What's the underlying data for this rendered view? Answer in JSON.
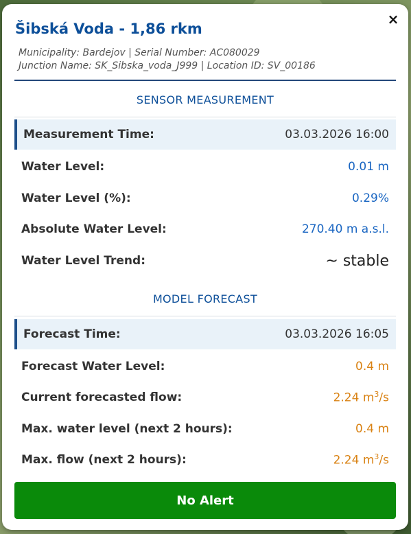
{
  "popup": {
    "title": "Šibská Voda - 1,86 rkm",
    "meta_line1": "Municipality: Bardejov | Serial Number: AC080029",
    "meta_line2": "Junction Name: SK_Sibska_voda_J999 | Location ID: SV_00186",
    "close_icon": "×"
  },
  "sensor": {
    "heading": "SENSOR MEASUREMENT",
    "rows": [
      {
        "label": "Measurement Time:",
        "value": "03.03.2026 16:00"
      },
      {
        "label": "Water Level:",
        "value": "0.01 m"
      },
      {
        "label": "Water Level (%):",
        "value": "0.29%"
      },
      {
        "label": "Absolute Water Level:",
        "value": "270.40 m a.s.l."
      },
      {
        "label": "Water Level Trend:",
        "value": "~ stable"
      }
    ]
  },
  "forecast": {
    "heading": "MODEL FORECAST",
    "rows": [
      {
        "label": "Forecast Time:",
        "value": "03.03.2026 16:05"
      },
      {
        "label": "Forecast Water Level:",
        "value": "0.4 m"
      },
      {
        "label": "Current forecasted flow:",
        "value": "2.24 m",
        "unit_sup": "3",
        "unit_suffix": "/s"
      },
      {
        "label": "Max. water level (next 2 hours):",
        "value": "0.4 m"
      },
      {
        "label": "Max. flow (next 2 hours):",
        "value": "2.24 m",
        "unit_sup": "3",
        "unit_suffix": "/s"
      }
    ]
  },
  "alert": {
    "label": "No Alert",
    "color": "#0a8a0a"
  },
  "colors": {
    "title": "#0d4f99",
    "value_blue": "#1a66c2",
    "value_orange": "#d98213"
  }
}
